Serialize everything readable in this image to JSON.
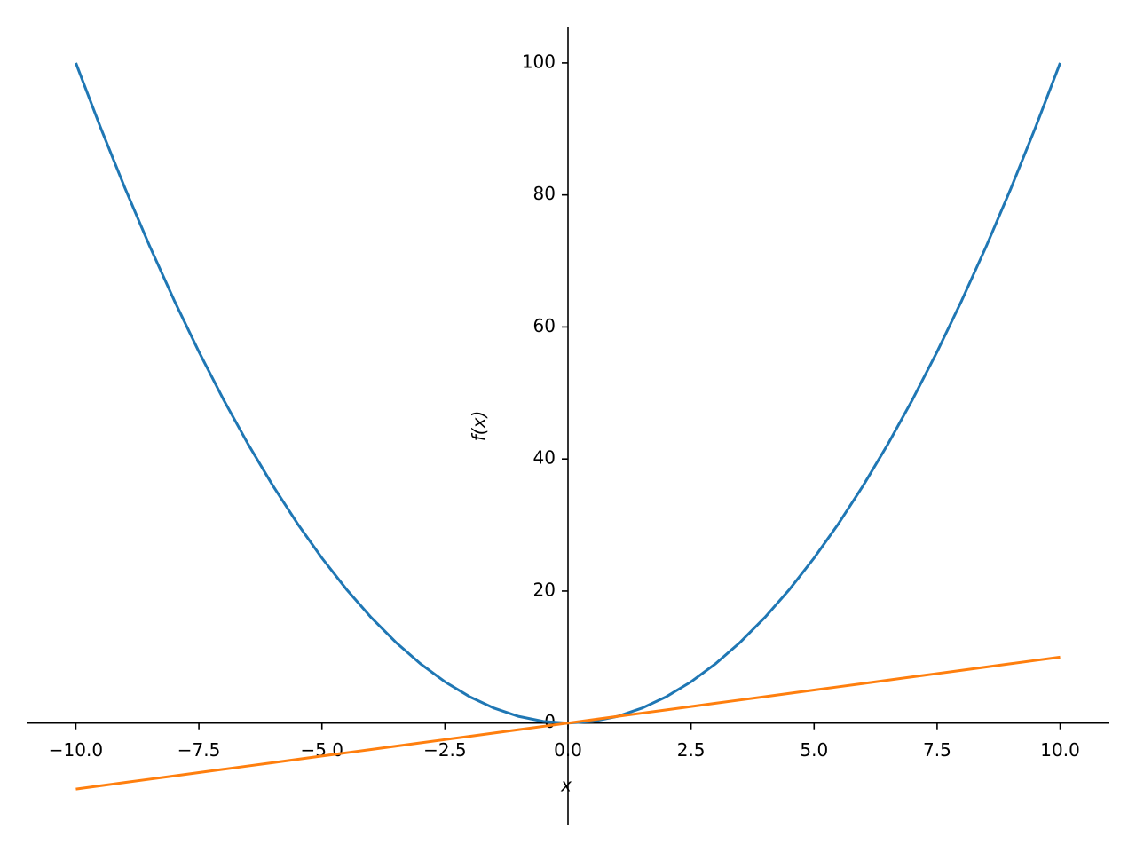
{
  "chart_data": {
    "type": "line",
    "xlabel": "x",
    "ylabel": "f(x)",
    "x": [
      -10,
      -9.5,
      -9,
      -8.5,
      -8,
      -7.5,
      -7,
      -6.5,
      -6,
      -5.5,
      -5,
      -4.5,
      -4,
      -3.5,
      -3,
      -2.5,
      -2,
      -1.5,
      -1,
      -0.5,
      0,
      0.5,
      1,
      1.5,
      2,
      2.5,
      3,
      3.5,
      4,
      4.5,
      5,
      5.5,
      6,
      6.5,
      7,
      7.5,
      8,
      8.5,
      9,
      9.5,
      10
    ],
    "series": [
      {
        "color": "#1f77b4",
        "values": [
          100,
          90.25,
          81,
          72.25,
          64,
          56.25,
          49,
          42.25,
          36,
          30.25,
          25,
          20.25,
          16,
          12.25,
          9,
          6.25,
          4,
          2.25,
          1,
          0.25,
          0,
          0.25,
          1,
          2.25,
          4,
          6.25,
          9,
          12.25,
          16,
          20.25,
          25,
          30.25,
          36,
          42.25,
          49,
          56.25,
          64,
          72.25,
          81,
          90.25,
          100
        ]
      },
      {
        "color": "#ff7f0e",
        "values": [
          -10,
          -9.5,
          -9,
          -8.5,
          -8,
          -7.5,
          -7,
          -6.5,
          -6,
          -5.5,
          -5,
          -4.5,
          -4,
          -3.5,
          -3,
          -2.5,
          -2,
          -1.5,
          -1,
          -0.5,
          0,
          0.5,
          1,
          1.5,
          2,
          2.5,
          3,
          3.5,
          4,
          4.5,
          5,
          5.5,
          6,
          6.5,
          7,
          7.5,
          8,
          8.5,
          9,
          9.5,
          10
        ]
      }
    ],
    "xlim": [
      -11,
      11
    ],
    "ylim": [
      -15.5,
      105.5
    ],
    "xticks": [
      {
        "value": -10,
        "label": "−10.0"
      },
      {
        "value": -7.5,
        "label": "−7.5"
      },
      {
        "value": -5,
        "label": "−5.0"
      },
      {
        "value": -2.5,
        "label": "−2.5"
      },
      {
        "value": 0,
        "label": "0.0"
      },
      {
        "value": 2.5,
        "label": "2.5"
      },
      {
        "value": 5,
        "label": "5.0"
      },
      {
        "value": 7.5,
        "label": "7.5"
      },
      {
        "value": 10,
        "label": "10.0"
      }
    ],
    "yticks": [
      0,
      20,
      40,
      60,
      80,
      100
    ],
    "grid": false
  }
}
